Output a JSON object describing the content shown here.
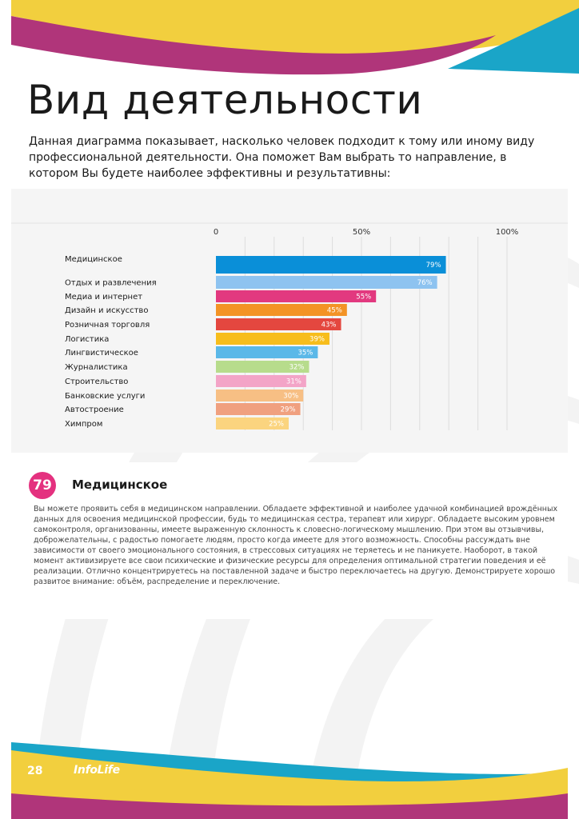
{
  "header": {
    "title": "Вид деятельности",
    "intro": "Данная диаграмма показывает, насколько человек подходит к тому или иному виду профессиональной деятельности. Она поможет Вам выбрать то направление, в котором Вы будете наиболее эффективны и результативны:"
  },
  "chart_data": {
    "type": "bar",
    "orientation": "horizontal",
    "categories": [
      "Медицинское",
      "Отдых и развлечения",
      "Медиа и интернет",
      "Дизайн и искусство",
      "Розничная торговля",
      "Логистика",
      "Лингвистическое",
      "Журналистика",
      "Строительство",
      "Банковские услуги",
      "Автостроение",
      "Химпром"
    ],
    "values": [
      79,
      76,
      55,
      45,
      43,
      39,
      35,
      32,
      31,
      30,
      29,
      25
    ],
    "value_labels": [
      "79%",
      "76%",
      "55%",
      "45%",
      "43%",
      "39%",
      "35%",
      "32%",
      "31%",
      "30%",
      "29%",
      "25%"
    ],
    "colors": [
      "#0a8fd8",
      "#8ec3f0",
      "#e2397f",
      "#f39325",
      "#e4473f",
      "#f7bd1c",
      "#5bb8e8",
      "#b7dc8c",
      "#f3a4c7",
      "#f7bf84",
      "#f0a07f",
      "#fbd47f"
    ],
    "xlim": [
      0,
      100
    ],
    "ticks": [
      "0",
      "50%",
      "100%"
    ],
    "tick_values": [
      0,
      50,
      100
    ],
    "gridlines": [
      10,
      20,
      30,
      40,
      50,
      60,
      70,
      80,
      90,
      100
    ],
    "grid": true
  },
  "detail": {
    "score": "79",
    "title": "Медицинское",
    "text": "Вы можете проявить себя в медицинском направлении. Обладаете эффективной и наиболее удачной комбинацией врождённых данных для освоения медицинской профессии, будь то медицинская сестра, терапевт или хирург. Обладаете высоким уровнем самоконтроля, организованны, имеете выраженную склонность к словесно-логическому мышлению. При этом вы отзывчивы, доброжелательны, с радостью помогаете людям, просто когда имеете для этого возможность. Способны рассуждать вне зависимости от своего эмоционального состояния, в стрессовых ситуациях не теряетесь и не паникуете. Наоборот, в такой момент активизируете все свои психические и физические ресурсы для определения оптимальной стратегии поведения и её реализации. Отлично концентрируетесь на поставленной задаче и быстро переключаетесь на другую. Демонстрируете хорошо развитое внимание: объём, распределение и переключение."
  },
  "footer": {
    "page_number": "28",
    "logo": "InfoLife"
  },
  "colors": {
    "yellow": "#f2cf3e",
    "magenta": "#b0357a",
    "teal": "#1aa5c8",
    "pink": "#e4317f",
    "panel": "#f5f5f5"
  }
}
